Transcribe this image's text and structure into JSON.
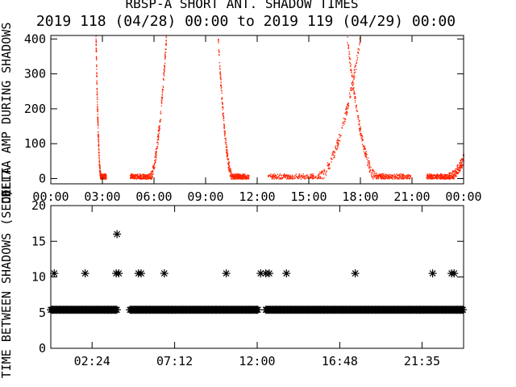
{
  "title": "RBSP-A SHORT ANT. SHADOW TIMES",
  "subtitle": "2019 118 (04/28) 00:00 to 2019 119 (04/29) 00:00",
  "chart_data": [
    {
      "type": "scatter",
      "ylabel": "DELTA AMP DURING SHADOWS",
      "xlim": [
        0,
        24
      ],
      "ylim": [
        -15,
        410
      ],
      "yticks": [
        0,
        100,
        200,
        300,
        400
      ],
      "xtick_labels": [
        "00:00",
        "03:00",
        "06:00",
        "09:00",
        "12:00",
        "15:00",
        "18:00",
        "21:00",
        "00:00"
      ],
      "xtick_hours": [
        0,
        3,
        6,
        9,
        12,
        15,
        18,
        21,
        24
      ],
      "marker_color": "#ff2200",
      "arcs": [
        {
          "x_min": 2.6,
          "x_max": 3.2,
          "y_start": 410,
          "y_min": 0,
          "y_end": null
        },
        {
          "x_min": 4.6,
          "x_max": 6.7,
          "y_start": 0,
          "y_min": 0,
          "y_end": 410
        },
        {
          "x_min": 9.7,
          "x_max": 11.5,
          "y_start": 410,
          "y_min": 0,
          "y_end": null
        },
        {
          "x_min": 12.6,
          "x_max": 18.0,
          "y_start": 0,
          "y_min": 0,
          "y_end": 410
        },
        {
          "x_min": 17.2,
          "x_max": 20.9,
          "y_start": 410,
          "y_min": 0,
          "y_end": null
        },
        {
          "x_min": 21.8,
          "x_max": 24.0,
          "y_start": 0,
          "y_min": 0,
          "y_end": 60
        }
      ]
    },
    {
      "type": "scatter",
      "ylabel": "TIME BETWEEN SHADOWS (SEC)",
      "ylabel_overlap": "DELTA",
      "xlim": [
        0,
        24
      ],
      "ylim": [
        0,
        20
      ],
      "yticks": [
        0,
        5,
        10,
        15,
        20
      ],
      "xtick_labels": [
        "02:24",
        "07:12",
        "12:00",
        "16:48",
        "21:35"
      ],
      "xtick_hours": [
        2.4,
        7.2,
        12.0,
        16.8,
        21.583
      ],
      "marker": "*",
      "marker_color": "#000000",
      "baseline_value": 5.4,
      "baseline_ranges": [
        [
          0,
          3.9
        ],
        [
          4.6,
          12.1
        ],
        [
          12.5,
          24.0
        ]
      ],
      "points": [
        {
          "x": 0.2,
          "y": 10.5
        },
        {
          "x": 2.0,
          "y": 10.5
        },
        {
          "x": 3.8,
          "y": 10.5
        },
        {
          "x": 3.95,
          "y": 10.5
        },
        {
          "x": 3.85,
          "y": 16.0
        },
        {
          "x": 5.1,
          "y": 10.5
        },
        {
          "x": 5.25,
          "y": 10.5
        },
        {
          "x": 6.6,
          "y": 10.5
        },
        {
          "x": 10.2,
          "y": 10.5
        },
        {
          "x": 12.2,
          "y": 10.5
        },
        {
          "x": 12.5,
          "y": 10.5
        },
        {
          "x": 12.7,
          "y": 10.5
        },
        {
          "x": 13.7,
          "y": 10.5
        },
        {
          "x": 17.7,
          "y": 10.5
        },
        {
          "x": 22.2,
          "y": 10.5
        },
        {
          "x": 23.3,
          "y": 10.5
        },
        {
          "x": 23.45,
          "y": 10.5
        }
      ]
    }
  ]
}
